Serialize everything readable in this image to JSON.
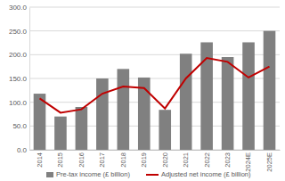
{
  "chart_data": {
    "type": "bar",
    "categories": [
      "2014",
      "2015",
      "2016",
      "2017",
      "2018",
      "2019",
      "2020",
      "2021",
      "2022",
      "2023",
      "2024E",
      "2025E"
    ],
    "series": [
      {
        "name": "Pre-tax income (£ billion)",
        "type": "bar",
        "color": "#808080",
        "values": [
          118,
          70,
          90,
          150,
          170,
          152,
          84,
          202,
          226,
          195,
          226,
          250
        ]
      },
      {
        "name": "Adjusted net income (£ billion)",
        "type": "line",
        "color": "#c00000",
        "values": [
          108,
          78,
          85,
          118,
          133,
          130,
          87,
          150,
          193,
          185,
          152,
          175
        ]
      }
    ],
    "ylim": [
      0,
      300
    ],
    "yticks": [
      {
        "value": 0,
        "label": "0.0"
      },
      {
        "value": 50,
        "label": "50.0"
      },
      {
        "value": 100,
        "label": "100.0"
      },
      {
        "value": 150,
        "label": "150.0"
      },
      {
        "value": 200,
        "label": "200.0"
      },
      {
        "value": 250,
        "label": "250.0"
      },
      {
        "value": 300,
        "label": "300.0"
      }
    ],
    "grid": true,
    "legend": "bottom"
  }
}
